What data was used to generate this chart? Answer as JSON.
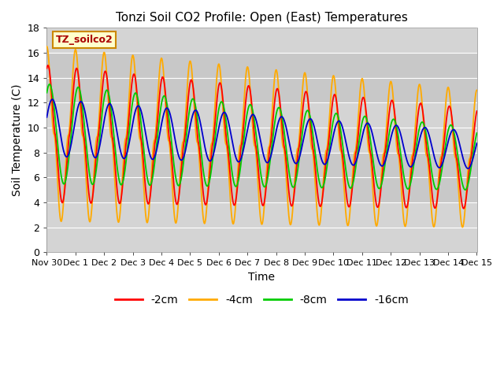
{
  "title": "Tonzi Soil CO2 Profile: Open (East) Temperatures",
  "xlabel": "Time",
  "ylabel": "Soil Temperature (C)",
  "ylim": [
    0,
    18
  ],
  "yticks": [
    0,
    2,
    4,
    6,
    8,
    10,
    12,
    14,
    16,
    18
  ],
  "annotation_text": "TZ_soilco2",
  "annotation_color": "#aa0000",
  "annotation_bg": "#ffffcc",
  "annotation_border": "#cc8800",
  "lines": {
    "-2cm": {
      "color": "#ff0000",
      "lw": 1.3
    },
    "-4cm": {
      "color": "#ffaa00",
      "lw": 1.3
    },
    "-8cm": {
      "color": "#00cc00",
      "lw": 1.3
    },
    "-16cm": {
      "color": "#0000cc",
      "lw": 1.3
    }
  },
  "legend_labels": [
    "-2cm",
    "-4cm",
    "-8cm",
    "-16cm"
  ],
  "legend_colors": [
    "#ff0000",
    "#ffaa00",
    "#00cc00",
    "#0000cc"
  ],
  "xticklabels": [
    "Nov 30",
    "Dec 1",
    "Dec 2",
    "Dec 3",
    "Dec 4",
    "Dec 5",
    "Dec 6",
    "Dec 7",
    "Dec 8",
    "Dec 9",
    "Dec 10",
    "Dec 11",
    "Dec 12",
    "Dec 13",
    "Dec 14",
    "Dec 15"
  ],
  "plot_bg_color": "#d4d4d4",
  "band_color": "#c0c0c0",
  "grid_color": "#ffffff"
}
